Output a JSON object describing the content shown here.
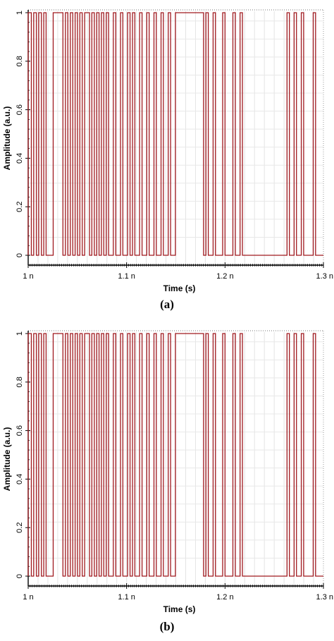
{
  "chart_data": [
    {
      "type": "line",
      "caption": "(a)",
      "xlabel": "Time (s)",
      "ylabel": "Amplitude (a.u.)",
      "xlim": [
        1.0,
        1.3
      ],
      "ylim": [
        0,
        1
      ],
      "x_unit": "n",
      "x_tick_labels": [
        "1 n",
        "1.1 n",
        "1.2 n",
        "1.3 n"
      ],
      "x_ticks": [
        1.0,
        1.1,
        1.2,
        1.3
      ],
      "y_ticks": [
        0,
        0.2,
        0.4,
        0.6,
        0.8,
        1
      ],
      "y_tick_labels": [
        "0",
        "0.2",
        "0.4",
        "0.6",
        "0.8",
        "1"
      ],
      "grid": true,
      "line_color": "#a0191f",
      "series": [
        {
          "pulses_high": [
            [
              1.0,
              1.0032
            ],
            [
              1.0056,
              1.0083
            ],
            [
              1.0107,
              1.0134
            ],
            [
              1.0158,
              1.0182
            ],
            [
              1.0254,
              1.0353
            ],
            [
              1.0378,
              1.0403
            ],
            [
              1.0428,
              1.0453
            ],
            [
              1.0477,
              1.0501
            ],
            [
              1.0525,
              1.0549
            ],
            [
              1.0574,
              1.0623
            ],
            [
              1.0647,
              1.0672
            ],
            [
              1.0696,
              1.072
            ],
            [
              1.0744,
              1.0768
            ],
            [
              1.0793,
              1.0817
            ],
            [
              1.0865,
              1.089
            ],
            [
              1.0938,
              1.0962
            ],
            [
              1.101,
              1.1035
            ],
            [
              1.106,
              1.1084
            ],
            [
              1.1132,
              1.1157
            ],
            [
              1.1205,
              1.1229
            ],
            [
              1.1278,
              1.1302
            ],
            [
              1.135,
              1.1374
            ],
            [
              1.1423,
              1.1447
            ],
            [
              1.1496,
              1.1782
            ],
            [
              1.1806,
              1.183
            ],
            [
              1.1879,
              1.1903
            ],
            [
              1.1976,
              1.2
            ],
            [
              1.208,
              1.2105
            ],
            [
              1.2153,
              1.2177
            ],
            [
              1.263,
              1.2654
            ],
            [
              1.2702,
              1.2726
            ],
            [
              1.2775,
              1.2799
            ],
            [
              1.2896,
              1.292
            ]
          ]
        }
      ]
    },
    {
      "type": "line",
      "caption": "(b)",
      "xlabel": "Time (s)",
      "ylabel": "Amplitude (a.u.)",
      "xlim": [
        1.0,
        1.3
      ],
      "ylim": [
        0,
        1
      ],
      "x_unit": "n",
      "x_tick_labels": [
        "1 n",
        "1.1 n",
        "1.2 n",
        "1.3 n"
      ],
      "x_ticks": [
        1.0,
        1.1,
        1.2,
        1.3
      ],
      "y_ticks": [
        0,
        0.2,
        0.4,
        0.6,
        0.8,
        1
      ],
      "y_tick_labels": [
        "0",
        "0.2",
        "0.4",
        "0.6",
        "0.8",
        "1"
      ],
      "grid": true,
      "line_color": "#a0191f",
      "series": [
        {
          "pulses_high": [
            [
              1.0,
              1.0032
            ],
            [
              1.0056,
              1.0083
            ],
            [
              1.0107,
              1.0134
            ],
            [
              1.0158,
              1.0182
            ],
            [
              1.0254,
              1.0353
            ],
            [
              1.0378,
              1.0403
            ],
            [
              1.0428,
              1.0453
            ],
            [
              1.0477,
              1.0501
            ],
            [
              1.0525,
              1.0549
            ],
            [
              1.0574,
              1.0623
            ],
            [
              1.0647,
              1.0672
            ],
            [
              1.0696,
              1.072
            ],
            [
              1.0744,
              1.0768
            ],
            [
              1.0793,
              1.0817
            ],
            [
              1.0865,
              1.089
            ],
            [
              1.0938,
              1.0962
            ],
            [
              1.101,
              1.1035
            ],
            [
              1.106,
              1.1084
            ],
            [
              1.1132,
              1.1157
            ],
            [
              1.1205,
              1.1229
            ],
            [
              1.1278,
              1.1302
            ],
            [
              1.135,
              1.1374
            ],
            [
              1.1423,
              1.1447
            ],
            [
              1.1496,
              1.1782
            ],
            [
              1.1806,
              1.183
            ],
            [
              1.1879,
              1.1903
            ],
            [
              1.1976,
              1.2
            ],
            [
              1.208,
              1.2105
            ],
            [
              1.2153,
              1.2177
            ],
            [
              1.263,
              1.2654
            ],
            [
              1.2702,
              1.2726
            ],
            [
              1.2775,
              1.2799
            ],
            [
              1.2896,
              1.292
            ]
          ]
        }
      ]
    }
  ]
}
